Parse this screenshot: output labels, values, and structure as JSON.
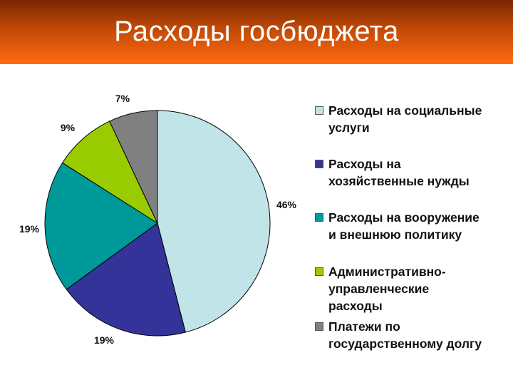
{
  "slide": {
    "title": "Расходы госбюджета"
  },
  "chart_data": {
    "type": "pie",
    "categories": [
      "Расходы на социальные услуги",
      "Расходы на хозяйственные нужды",
      "Расходы на вооружение и внешнюю политику",
      "Административно-управленческие расходы",
      "Платежи по государственному долгу"
    ],
    "values": [
      46,
      19,
      19,
      9,
      7
    ],
    "value_labels": [
      "46%",
      "19%",
      "19%",
      "9%",
      "7%"
    ],
    "colors": [
      "#c0e4e8",
      "#333399",
      "#009999",
      "#99cc00",
      "#808080"
    ],
    "legend": {
      "position": "right",
      "entries": [
        "Расходы на социальные\nуслуги",
        "Расходы на\nхозяйственные нужды",
        "Расходы на вооружение\nи внешнюю политику",
        "Административно-\nуправленческие\nрасходы",
        "Платежи по\nгосударственному долгу"
      ]
    },
    "start": "top, clockwise"
  }
}
